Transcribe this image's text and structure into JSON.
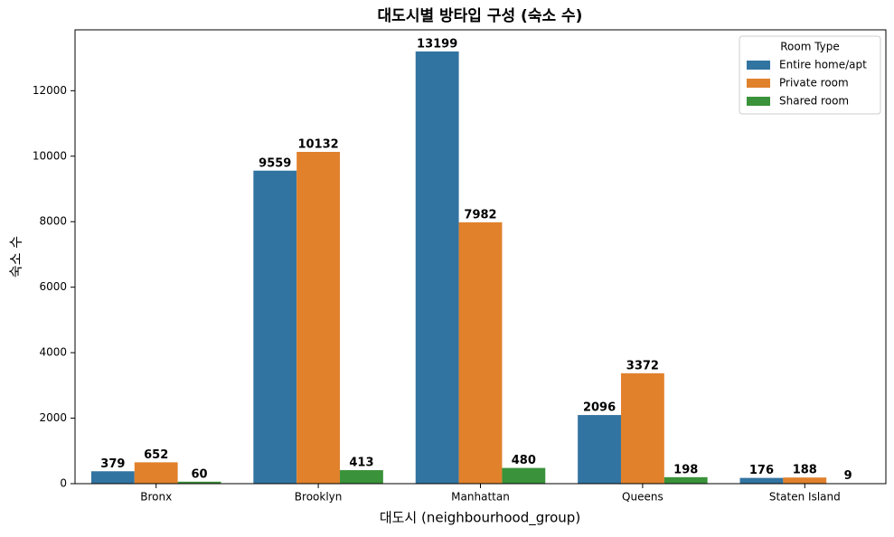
{
  "chart_data": {
    "type": "bar",
    "title": "대도시별 방타입 구성 (숙소 수)",
    "x_label": "대도시 (neighbourhood_group)",
    "y_label": "숙소 수",
    "legend_title": "Room Type",
    "legend_position": "upper right",
    "categories": [
      "Bronx",
      "Brooklyn",
      "Manhattan",
      "Queens",
      "Staten Island"
    ],
    "series": [
      {
        "name": "Entire home/apt",
        "color": "#3274a1",
        "values": [
          379,
          9559,
          13199,
          2096,
          176
        ]
      },
      {
        "name": "Private room",
        "color": "#e1812c",
        "values": [
          652,
          10132,
          7982,
          3372,
          188
        ]
      },
      {
        "name": "Shared room",
        "color": "#3a923a",
        "values": [
          60,
          413,
          480,
          198,
          9
        ]
      }
    ],
    "ylim": [
      0,
      13859
    ],
    "yticks": [
      0,
      2000,
      4000,
      6000,
      8000,
      10000,
      12000
    ],
    "grid": false
  }
}
